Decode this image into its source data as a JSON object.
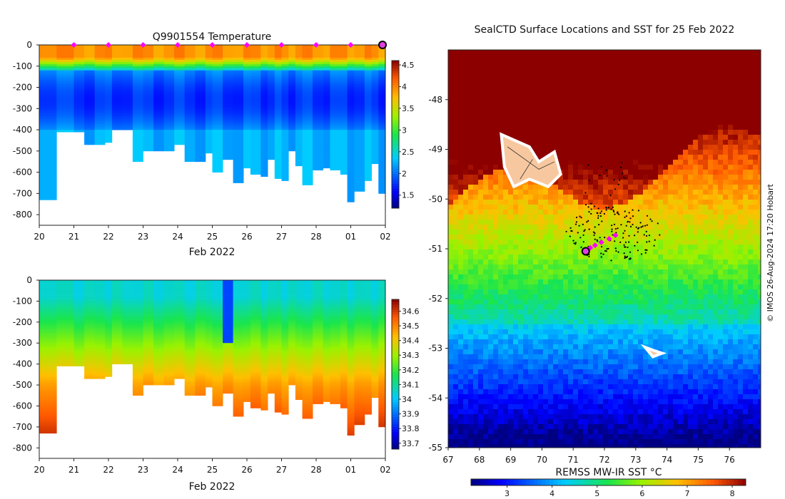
{
  "chart_data": [
    {
      "type": "heatmap",
      "title": "Q9901554  Temperature",
      "xlabel": "Feb 2022",
      "ylabel": "",
      "x_tick_labels": [
        "20",
        "21",
        "22",
        "23",
        "24",
        "25",
        "26",
        "27",
        "28",
        "01",
        "02"
      ],
      "y_ticks": [
        0,
        -100,
        -200,
        -300,
        -400,
        -500,
        -600,
        -700,
        -800
      ],
      "ylim": [
        -850,
        0
      ],
      "profile_markers": 9,
      "colorbar": {
        "min": 1.2,
        "max": 4.6,
        "ticks": [
          1.5,
          2,
          2.5,
          3,
          3.5,
          4,
          4.5
        ]
      },
      "profiles": [
        {
          "x": 20.0,
          "max_depth": 730
        },
        {
          "x": 20.5,
          "max_depth": 410
        },
        {
          "x": 21.0,
          "max_depth": 410
        },
        {
          "x": 21.3,
          "max_depth": 465
        },
        {
          "x": 21.6,
          "max_depth": 470
        },
        {
          "x": 21.9,
          "max_depth": 460
        },
        {
          "x": 22.1,
          "max_depth": 400
        },
        {
          "x": 22.4,
          "max_depth": 400
        },
        {
          "x": 22.7,
          "max_depth": 545
        },
        {
          "x": 23.0,
          "max_depth": 500
        },
        {
          "x": 23.3,
          "max_depth": 498
        },
        {
          "x": 23.6,
          "max_depth": 500
        },
        {
          "x": 23.9,
          "max_depth": 470
        },
        {
          "x": 24.2,
          "max_depth": 545
        },
        {
          "x": 24.5,
          "max_depth": 550
        },
        {
          "x": 24.8,
          "max_depth": 505
        },
        {
          "x": 25.0,
          "max_depth": 600
        },
        {
          "x": 25.3,
          "max_depth": 540
        },
        {
          "x": 25.6,
          "max_depth": 645
        },
        {
          "x": 25.9,
          "max_depth": 580
        },
        {
          "x": 26.1,
          "max_depth": 610
        },
        {
          "x": 26.4,
          "max_depth": 620
        },
        {
          "x": 26.6,
          "max_depth": 540
        },
        {
          "x": 26.8,
          "max_depth": 625
        },
        {
          "x": 27.0,
          "max_depth": 640
        },
        {
          "x": 27.2,
          "max_depth": 500
        },
        {
          "x": 27.4,
          "max_depth": 570
        },
        {
          "x": 27.6,
          "max_depth": 660
        },
        {
          "x": 27.9,
          "max_depth": 590
        },
        {
          "x": 28.2,
          "max_depth": 580
        },
        {
          "x": 28.4,
          "max_depth": 590
        },
        {
          "x": 28.7,
          "max_depth": 610
        },
        {
          "x": 28.9,
          "max_depth": 740
        },
        {
          "x": 29.1,
          "max_depth": 690
        },
        {
          "x": 29.4,
          "max_depth": 640
        },
        {
          "x": 29.6,
          "max_depth": 560
        },
        {
          "x": 29.8,
          "max_depth": 700
        },
        {
          "x": 30.0,
          "max_depth": 580
        }
      ]
    },
    {
      "type": "heatmap",
      "title": "",
      "xlabel": "Feb 2022",
      "ylabel": "",
      "x_tick_labels": [
        "20",
        "21",
        "22",
        "23",
        "24",
        "25",
        "26",
        "27",
        "28",
        "01",
        "02"
      ],
      "y_ticks": [
        0,
        -100,
        -200,
        -300,
        -400,
        -500,
        -600,
        -700,
        -800
      ],
      "ylim": [
        -850,
        0
      ],
      "colorbar": {
        "min": 33.66,
        "max": 34.68,
        "ticks": [
          33.7,
          33.8,
          33.9,
          34,
          34.1,
          34.2,
          34.3,
          34.4,
          34.5,
          34.6
        ]
      }
    },
    {
      "type": "heatmap",
      "title": "SealCTD Surface Locations and SST for 25 Feb 2022",
      "xlabel": "",
      "ylabel": "",
      "x_ticks": [
        67,
        68,
        69,
        70,
        71,
        72,
        73,
        74,
        75,
        76
      ],
      "y_ticks": [
        -48,
        -49,
        -50,
        -51,
        -52,
        -53,
        -54,
        -55
      ],
      "xlim": [
        67,
        77
      ],
      "ylim": [
        -55,
        -47
      ],
      "colorbar": {
        "label": "REMSS MW-IR SST °C",
        "min": 2.2,
        "max": 8.3,
        "ticks": [
          3,
          4,
          5,
          6,
          7,
          8
        ]
      },
      "current_position": {
        "lon": 71.4,
        "lat": -51.05
      },
      "recent_track": [
        {
          "lon": 71.55,
          "lat": -50.98
        },
        {
          "lon": 71.7,
          "lat": -50.93
        },
        {
          "lon": 71.9,
          "lat": -50.87
        },
        {
          "lon": 72.15,
          "lat": -50.8
        },
        {
          "lon": 72.35,
          "lat": -50.73
        }
      ],
      "credit": "© IMOS 26-Aug-2024 17:20 Hobart"
    }
  ]
}
